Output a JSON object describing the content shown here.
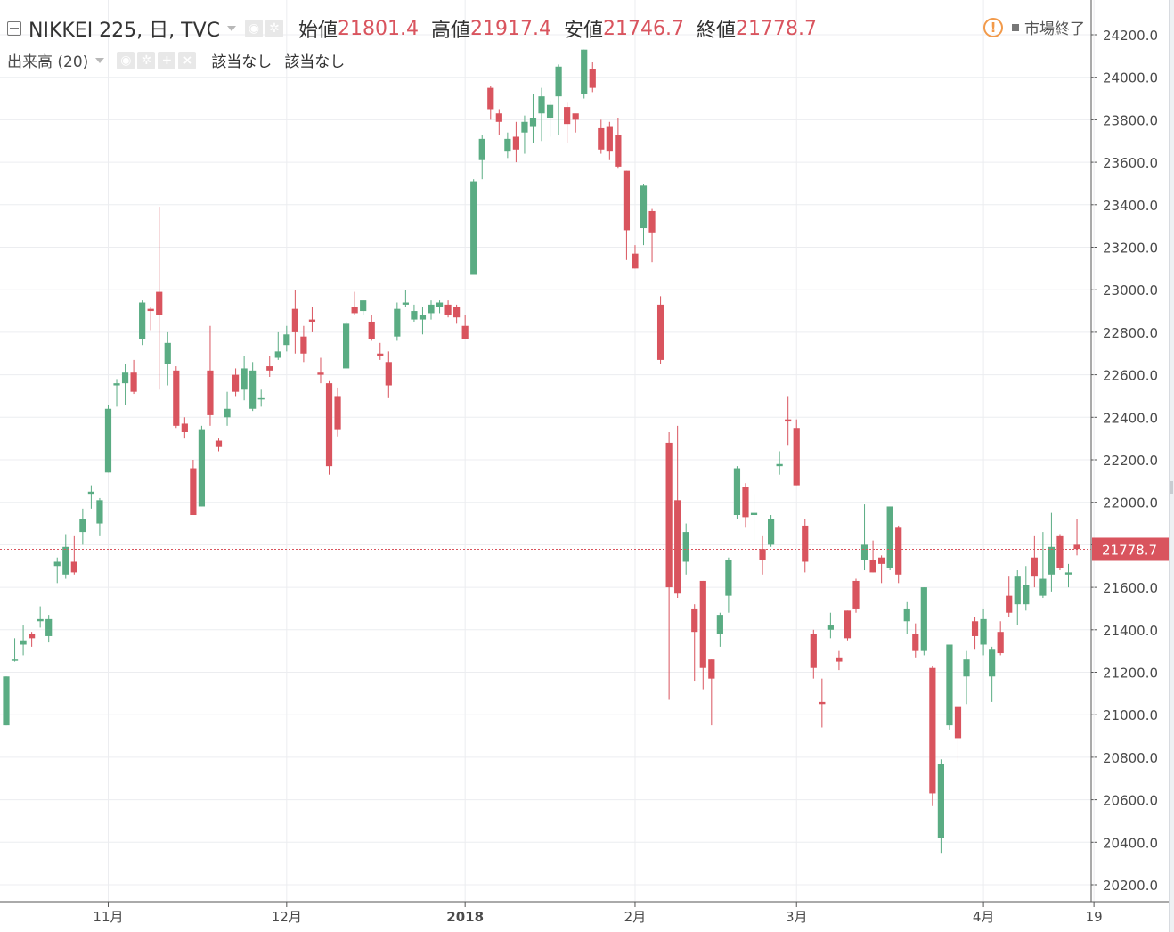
{
  "legend": {
    "symbol": "NIKKEI 225, 日, TVC",
    "open_label": "始値",
    "open_value": "21801.4",
    "high_label": "高値",
    "high_value": "21917.4",
    "low_label": "安値",
    "low_value": "21746.7",
    "close_label": "終値",
    "close_value": "21778.7"
  },
  "volume_legend": {
    "label": "出来高 (20)",
    "na1": "該当なし",
    "na2": "該当なし"
  },
  "status": {
    "alert_icon": "!",
    "text": "市場終了"
  },
  "colors": {
    "up": "#5aac83",
    "down": "#d9545e",
    "grid": "#ecedf0",
    "axis_text": "#4a4a4a",
    "price_line": "#d9545e"
  },
  "chart_data": {
    "type": "candlestick",
    "ylim": [
      20130,
      24315
    ],
    "y_ticks": [
      "20200.0",
      "20400.0",
      "20600.0",
      "20800.0",
      "21000.0",
      "21200.0",
      "21400.0",
      "21600.0",
      "21800.0",
      "22000.0",
      "22200.0",
      "22400.0",
      "22600.0",
      "22800.0",
      "23000.0",
      "23200.0",
      "23400.0",
      "23600.0",
      "23800.0",
      "24000.0",
      "24200.0"
    ],
    "x_ticks": [
      {
        "label": "11月",
        "index": 12,
        "bold": false
      },
      {
        "label": "12月",
        "index": 33,
        "bold": false
      },
      {
        "label": "2018",
        "index": 54,
        "bold": true
      },
      {
        "label": "2月",
        "index": 74,
        "bold": false
      },
      {
        "label": "3月",
        "index": 93,
        "bold": false
      },
      {
        "label": "4月",
        "index": 115,
        "bold": false
      },
      {
        "label": "19",
        "index": 128,
        "bold": false
      }
    ],
    "last_price": "21778.7",
    "last_price_value": 21778.7,
    "candles": [
      [
        20950,
        21180,
        20950,
        21180
      ],
      [
        21260,
        21260,
        21360,
        21250
      ],
      [
        21330,
        21350,
        21420,
        21280
      ],
      [
        21380,
        21360,
        21390,
        21320
      ],
      [
        21440,
        21450,
        21510,
        21410
      ],
      [
        21370,
        21450,
        21470,
        21340
      ],
      [
        21700,
        21720,
        21740,
        21620
      ],
      [
        21660,
        21790,
        21850,
        21640
      ],
      [
        21720,
        21670,
        21840,
        21660
      ],
      [
        21860,
        21920,
        21970,
        21800
      ],
      [
        22040,
        22050,
        22080,
        21970
      ],
      [
        21900,
        22010,
        22020,
        21840
      ],
      [
        22140,
        22440,
        22460,
        22140
      ],
      [
        22550,
        22560,
        22580,
        22450
      ],
      [
        22560,
        22610,
        22650,
        22460
      ],
      [
        22610,
        22520,
        22670,
        22510
      ],
      [
        22770,
        22940,
        22950,
        22740
      ],
      [
        22910,
        22900,
        22920,
        22810
      ],
      [
        22990,
        22880,
        23390,
        22530
      ],
      [
        22650,
        22750,
        22800,
        22550
      ],
      [
        22620,
        22360,
        22640,
        22350
      ],
      [
        22370,
        22330,
        22400,
        22300
      ],
      [
        22160,
        21940,
        22200,
        21940
      ],
      [
        21980,
        22340,
        22360,
        21980
      ],
      [
        22620,
        22410,
        22830,
        22360
      ],
      [
        22290,
        22260,
        22300,
        22240
      ],
      [
        22400,
        22440,
        22520,
        22360
      ],
      [
        22600,
        22520,
        22630,
        22500
      ],
      [
        22530,
        22630,
        22690,
        22480
      ],
      [
        22440,
        22620,
        22660,
        22430
      ],
      [
        22490,
        22490,
        22530,
        22450
      ],
      [
        22640,
        22620,
        22690,
        22590
      ],
      [
        22680,
        22710,
        22800,
        22670
      ],
      [
        22740,
        22790,
        22830,
        22710
      ],
      [
        22910,
        22800,
        23000,
        22700
      ],
      [
        22780,
        22700,
        22830,
        22660
      ],
      [
        22860,
        22850,
        22920,
        22800
      ],
      [
        22610,
        22600,
        22680,
        22560
      ],
      [
        22560,
        22170,
        22570,
        22130
      ],
      [
        22500,
        22340,
        22540,
        22310
      ],
      [
        22630,
        22840,
        22850,
        22630
      ],
      [
        22920,
        22890,
        22990,
        22880
      ],
      [
        22900,
        22950,
        22950,
        22880
      ],
      [
        22850,
        22770,
        22880,
        22760
      ],
      [
        22700,
        22690,
        22750,
        22670
      ],
      [
        22660,
        22550,
        22710,
        22490
      ],
      [
        22780,
        22910,
        22940,
        22760
      ],
      [
        22930,
        22940,
        23000,
        22920
      ],
      [
        22860,
        22900,
        22930,
        22850
      ],
      [
        22860,
        22880,
        22920,
        22790
      ],
      [
        22890,
        22930,
        22950,
        22860
      ],
      [
        22920,
        22940,
        22950,
        22890
      ],
      [
        22930,
        22880,
        22950,
        22870
      ],
      [
        22920,
        22870,
        22930,
        22840
      ],
      [
        22830,
        22770,
        22880,
        22770
      ],
      [
        23070,
        23510,
        23520,
        23070
      ],
      [
        23610,
        23710,
        23730,
        23520
      ],
      [
        23950,
        23850,
        23960,
        23800
      ],
      [
        23830,
        23790,
        23850,
        23730
      ],
      [
        23650,
        23710,
        23740,
        23620
      ],
      [
        23720,
        23660,
        23790,
        23600
      ],
      [
        23740,
        23790,
        23820,
        23640
      ],
      [
        23770,
        23810,
        23920,
        23690
      ],
      [
        23830,
        23910,
        23950,
        23700
      ],
      [
        23810,
        23870,
        23890,
        23720
      ],
      [
        23910,
        24050,
        24060,
        23730
      ],
      [
        23860,
        23780,
        23880,
        23690
      ],
      [
        23830,
        23800,
        23820,
        23740
      ],
      [
        23920,
        24130,
        24130,
        23900
      ],
      [
        24040,
        23950,
        24070,
        23930
      ],
      [
        23760,
        23660,
        23800,
        23640
      ],
      [
        23770,
        23650,
        23790,
        23610
      ],
      [
        23730,
        23580,
        23810,
        23570
      ],
      [
        23560,
        23280,
        23560,
        23140
      ],
      [
        23170,
        23100,
        23210,
        23100
      ],
      [
        23290,
        23490,
        23500,
        23210
      ],
      [
        23370,
        23270,
        23380,
        23130
      ],
      [
        22930,
        22670,
        22970,
        22650
      ],
      [
        22280,
        21600,
        22330,
        21070
      ],
      [
        22010,
        21570,
        22360,
        21550
      ],
      [
        21720,
        21860,
        21900,
        21660
      ],
      [
        21500,
        21390,
        21520,
        21160
      ],
      [
        21630,
        21220,
        21630,
        21120
      ],
      [
        21260,
        21170,
        21260,
        20950
      ],
      [
        21380,
        21470,
        21480,
        21320
      ],
      [
        21560,
        21730,
        21740,
        21480
      ],
      [
        21940,
        22160,
        22170,
        21920
      ],
      [
        22070,
        21930,
        22090,
        21880
      ],
      [
        21940,
        21950,
        22040,
        21820
      ],
      [
        21780,
        21730,
        21840,
        21660
      ],
      [
        21800,
        21920,
        21940,
        21790
      ],
      [
        22170,
        22180,
        22240,
        22130
      ],
      [
        22390,
        22380,
        22500,
        22270
      ],
      [
        22350,
        22080,
        22390,
        22080
      ],
      [
        21890,
        21720,
        21920,
        21670
      ],
      [
        21380,
        21220,
        21400,
        21170
      ],
      [
        21060,
        21050,
        21170,
        20940
      ],
      [
        21400,
        21420,
        21480,
        21360
      ],
      [
        21270,
        21250,
        21300,
        21210
      ],
      [
        21490,
        21360,
        21490,
        21350
      ],
      [
        21630,
        21500,
        21640,
        21480
      ],
      [
        21730,
        21800,
        21990,
        21680
      ],
      [
        21730,
        21670,
        21820,
        21670
      ],
      [
        21740,
        21710,
        21750,
        21620
      ],
      [
        21690,
        21980,
        21980,
        21680
      ],
      [
        21880,
        21660,
        21890,
        21620
      ],
      [
        21440,
        21500,
        21530,
        21380
      ],
      [
        21380,
        21300,
        21430,
        21270
      ],
      [
        21300,
        21600,
        21600,
        21280
      ],
      [
        21220,
        20630,
        21230,
        20570
      ],
      [
        20420,
        20770,
        20790,
        20350
      ],
      [
        20950,
        21330,
        21330,
        20930
      ],
      [
        21040,
        20890,
        21040,
        20780
      ],
      [
        21180,
        21260,
        21300,
        21050
      ],
      [
        21440,
        21370,
        21460,
        21310
      ],
      [
        21330,
        21450,
        21500,
        21280
      ],
      [
        21180,
        21310,
        21320,
        21060
      ],
      [
        21390,
        21290,
        21440,
        21280
      ],
      [
        21560,
        21480,
        21650,
        21460
      ],
      [
        21520,
        21650,
        21680,
        21420
      ],
      [
        21520,
        21610,
        21700,
        21490
      ],
      [
        21740,
        21650,
        21840,
        21600
      ],
      [
        21560,
        21640,
        21860,
        21550
      ],
      [
        21660,
        21790,
        21950,
        21580
      ],
      [
        21840,
        21690,
        21850,
        21680
      ],
      [
        21660,
        21670,
        21710,
        21600
      ],
      [
        21800,
        21780,
        21920,
        21750
      ]
    ]
  }
}
